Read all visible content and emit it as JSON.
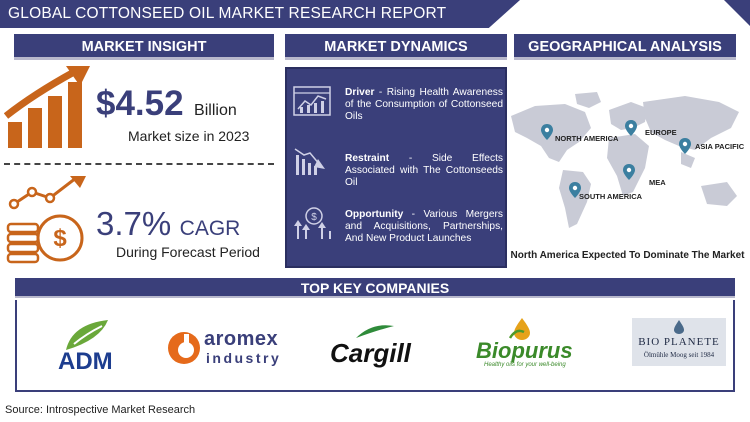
{
  "header": {
    "title": "GLOBAL COTTONSEED OIL MARKET RESEARCH REPORT"
  },
  "sections": {
    "insight": "MARKET INSIGHT",
    "dynamics": "MARKET DYNAMICS",
    "geo": "GEOGRAPHICAL ANALYSIS"
  },
  "insight": {
    "market_size_value": "$4.52",
    "market_size_unit": "Billion",
    "market_size_label": "Market size in 2023",
    "cagr_value": "3.7%",
    "cagr_unit": "CAGR",
    "cagr_label": "During Forecast Period"
  },
  "dynamics": [
    {
      "heading": "Driver",
      "text": " - Rising Health Awareness of the Consumption of Cottonseed Oils",
      "icon": "growth-chart-icon"
    },
    {
      "heading": "Restraint",
      "text": " - Side Effects Associated with The Cottonseeds Oil",
      "icon": "decline-chart-icon"
    },
    {
      "heading": "Opportunity",
      "text": " - Various Mergers and Acquisitions, Partnerships, And New Product Launches",
      "icon": "money-growth-icon"
    }
  ],
  "geo": {
    "regions": [
      "NORTH AMERICA",
      "EUROPE",
      "ASIA PACIFIC",
      "MEA",
      "SOUTH AMERICA"
    ],
    "caption": "North America Expected To Dominate The Market"
  },
  "companies": {
    "heading": "TOP KEY COMPANIES",
    "logos": {
      "adm": "ADM",
      "aromex_top": "aromex",
      "aromex_bottom": "industry",
      "cargill": "Cargill",
      "biopurus": "Biopurus",
      "biopurus_tag": "Healthy oils for your well-being",
      "bioplanete": "BIO PLANETE",
      "bioplanete_sub": "Ölmühle Moog seit 1984"
    }
  },
  "footer": {
    "source": "Source: Introspective Market Research"
  },
  "colors": {
    "navy": "#3a3f7a",
    "orange": "#c8651b",
    "map": "#c9cbd6",
    "pin": "#3b7fa0"
  }
}
